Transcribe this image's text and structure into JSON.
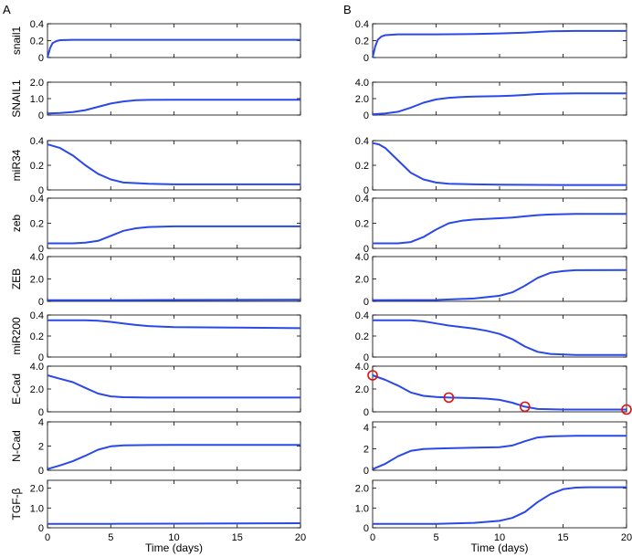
{
  "figure": {
    "x_axis_label": "Time (days)",
    "x_ticks": [
      "0",
      "5",
      "10",
      "15",
      "20"
    ],
    "line_color": "#2b48e8",
    "marker_color": "#e01010"
  },
  "chart_data": [
    {
      "panel_label": "A",
      "type": "line",
      "xlim": [
        0,
        20
      ],
      "xlabel": "Time (days)",
      "subplots": [
        {
          "ylabel": "snail1",
          "ylim": [
            0,
            0.4
          ],
          "yticks": [
            "0",
            "0.2",
            "0.4"
          ],
          "series": [
            [
              0,
              0.0
            ],
            [
              0.2,
              0.11
            ],
            [
              0.4,
              0.17
            ],
            [
              0.7,
              0.195
            ],
            [
              1,
              0.205
            ],
            [
              2,
              0.21
            ],
            [
              5,
              0.21
            ],
            [
              10,
              0.21
            ],
            [
              15,
              0.21
            ],
            [
              20,
              0.21
            ]
          ]
        },
        {
          "ylabel": "SNAIL1",
          "ylim": [
            0,
            2.0
          ],
          "yticks": [
            "0",
            "1.0",
            "2.0"
          ],
          "series": [
            [
              0,
              0.1
            ],
            [
              1,
              0.13
            ],
            [
              2,
              0.18
            ],
            [
              3,
              0.3
            ],
            [
              4,
              0.5
            ],
            [
              5,
              0.7
            ],
            [
              6,
              0.83
            ],
            [
              7,
              0.9
            ],
            [
              8,
              0.92
            ],
            [
              10,
              0.93
            ],
            [
              15,
              0.93
            ],
            [
              20,
              0.93
            ]
          ]
        },
        {
          "ylabel": "miR34",
          "ylim": [
            0,
            0.4
          ],
          "yticks": [
            "0",
            "0.2",
            "0.4"
          ],
          "series": [
            [
              0,
              0.37
            ],
            [
              1,
              0.34
            ],
            [
              2,
              0.28
            ],
            [
              3,
              0.2
            ],
            [
              4,
              0.13
            ],
            [
              5,
              0.085
            ],
            [
              6,
              0.06
            ],
            [
              8,
              0.05
            ],
            [
              10,
              0.045
            ],
            [
              15,
              0.045
            ],
            [
              20,
              0.045
            ]
          ]
        },
        {
          "ylabel": "zeb",
          "ylim": [
            0,
            0.4
          ],
          "yticks": [
            "0",
            "0.2",
            "0.4"
          ],
          "series": [
            [
              0,
              0.04
            ],
            [
              2,
              0.04
            ],
            [
              3,
              0.045
            ],
            [
              4,
              0.06
            ],
            [
              5,
              0.1
            ],
            [
              6,
              0.14
            ],
            [
              7,
              0.16
            ],
            [
              8,
              0.17
            ],
            [
              10,
              0.175
            ],
            [
              15,
              0.175
            ],
            [
              20,
              0.175
            ]
          ]
        },
        {
          "ylabel": "ZEB",
          "ylim": [
            0,
            4.0
          ],
          "yticks": [
            "0",
            "2.0",
            "4.0"
          ],
          "series": [
            [
              0,
              0.1
            ],
            [
              5,
              0.1
            ],
            [
              10,
              0.12
            ],
            [
              15,
              0.13
            ],
            [
              20,
              0.15
            ]
          ]
        },
        {
          "ylabel": "miR200",
          "ylim": [
            0,
            0.4
          ],
          "yticks": [
            "0",
            "0.2",
            "0.4"
          ],
          "series": [
            [
              0,
              0.35
            ],
            [
              3,
              0.35
            ],
            [
              4,
              0.345
            ],
            [
              5,
              0.335
            ],
            [
              6,
              0.32
            ],
            [
              7,
              0.305
            ],
            [
              8,
              0.295
            ],
            [
              10,
              0.285
            ],
            [
              15,
              0.28
            ],
            [
              20,
              0.275
            ]
          ]
        },
        {
          "ylabel": "E-Cad",
          "ylim": [
            0,
            4.0
          ],
          "yticks": [
            "0",
            "2.0",
            "4.0"
          ],
          "series": [
            [
              0,
              3.2
            ],
            [
              1,
              2.9
            ],
            [
              2,
              2.6
            ],
            [
              3,
              2.1
            ],
            [
              4,
              1.6
            ],
            [
              5,
              1.35
            ],
            [
              6,
              1.28
            ],
            [
              8,
              1.25
            ],
            [
              10,
              1.25
            ],
            [
              15,
              1.25
            ],
            [
              20,
              1.25
            ]
          ]
        },
        {
          "ylabel": "N-Cad",
          "ylim": [
            0,
            4.0
          ],
          "yticks": [
            "0",
            "2",
            "4"
          ],
          "series": [
            [
              0,
              0.1
            ],
            [
              1,
              0.4
            ],
            [
              2,
              0.75
            ],
            [
              3,
              1.2
            ],
            [
              4,
              1.7
            ],
            [
              5,
              1.98
            ],
            [
              6,
              2.05
            ],
            [
              8,
              2.08
            ],
            [
              10,
              2.1
            ],
            [
              15,
              2.1
            ],
            [
              20,
              2.1
            ]
          ]
        },
        {
          "ylabel": "TGF-β",
          "ylim": [
            0,
            2.4
          ],
          "yticks": [
            "0",
            "1.0",
            "2.0"
          ],
          "series": [
            [
              0,
              0.2
            ],
            [
              5,
              0.2
            ],
            [
              10,
              0.21
            ],
            [
              15,
              0.22
            ],
            [
              20,
              0.23
            ]
          ]
        }
      ]
    },
    {
      "panel_label": "B",
      "type": "line",
      "xlim": [
        0,
        20
      ],
      "xlabel": "Time (days)",
      "subplots": [
        {
          "ylabel": "",
          "ylim": [
            0,
            0.4
          ],
          "yticks": [
            "0",
            "0.2",
            "0.4"
          ],
          "series": [
            [
              0,
              0.0
            ],
            [
              0.2,
              0.13
            ],
            [
              0.4,
              0.21
            ],
            [
              0.7,
              0.25
            ],
            [
              1,
              0.265
            ],
            [
              2,
              0.275
            ],
            [
              5,
              0.275
            ],
            [
              8,
              0.278
            ],
            [
              10,
              0.285
            ],
            [
              12,
              0.295
            ],
            [
              14,
              0.31
            ],
            [
              16,
              0.315
            ],
            [
              20,
              0.315
            ]
          ]
        },
        {
          "ylabel": "",
          "ylim": [
            0,
            4.0
          ],
          "yticks": [
            "0",
            "2.0",
            "4.0"
          ],
          "series": [
            [
              0,
              0.1
            ],
            [
              1,
              0.2
            ],
            [
              2,
              0.4
            ],
            [
              3,
              0.9
            ],
            [
              4,
              1.5
            ],
            [
              5,
              1.9
            ],
            [
              6,
              2.1
            ],
            [
              7,
              2.2
            ],
            [
              8,
              2.25
            ],
            [
              10,
              2.3
            ],
            [
              11,
              2.35
            ],
            [
              12,
              2.45
            ],
            [
              13,
              2.55
            ],
            [
              14,
              2.6
            ],
            [
              16,
              2.65
            ],
            [
              20,
              2.65
            ]
          ]
        },
        {
          "ylabel": "",
          "ylim": [
            0,
            0.4
          ],
          "yticks": [
            "0",
            "0.2",
            "0.4"
          ],
          "series": [
            [
              0,
              0.38
            ],
            [
              0.5,
              0.37
            ],
            [
              1,
              0.34
            ],
            [
              2,
              0.24
            ],
            [
              3,
              0.14
            ],
            [
              4,
              0.085
            ],
            [
              5,
              0.06
            ],
            [
              6,
              0.05
            ],
            [
              8,
              0.045
            ],
            [
              10,
              0.042
            ],
            [
              15,
              0.04
            ],
            [
              20,
              0.04
            ]
          ]
        },
        {
          "ylabel": "",
          "ylim": [
            0,
            0.4
          ],
          "yticks": [
            "0",
            "0.2",
            "0.4"
          ],
          "series": [
            [
              0,
              0.04
            ],
            [
              2,
              0.04
            ],
            [
              3,
              0.05
            ],
            [
              4,
              0.09
            ],
            [
              5,
              0.15
            ],
            [
              6,
              0.2
            ],
            [
              7,
              0.22
            ],
            [
              8,
              0.23
            ],
            [
              10,
              0.24
            ],
            [
              11,
              0.245
            ],
            [
              12,
              0.255
            ],
            [
              13,
              0.265
            ],
            [
              14,
              0.27
            ],
            [
              16,
              0.275
            ],
            [
              20,
              0.275
            ]
          ]
        },
        {
          "ylabel": "",
          "ylim": [
            0,
            4.0
          ],
          "yticks": [
            "0",
            "2.0",
            "4.0"
          ],
          "series": [
            [
              0,
              0.1
            ],
            [
              5,
              0.12
            ],
            [
              8,
              0.25
            ],
            [
              10,
              0.5
            ],
            [
              11,
              0.8
            ],
            [
              12,
              1.4
            ],
            [
              13,
              2.1
            ],
            [
              14,
              2.55
            ],
            [
              15,
              2.7
            ],
            [
              16,
              2.78
            ],
            [
              20,
              2.8
            ]
          ]
        },
        {
          "ylabel": "",
          "ylim": [
            0,
            0.4
          ],
          "yticks": [
            "0",
            "0.2",
            "0.4"
          ],
          "series": [
            [
              0,
              0.35
            ],
            [
              3,
              0.35
            ],
            [
              4,
              0.34
            ],
            [
              5,
              0.32
            ],
            [
              6,
              0.3
            ],
            [
              8,
              0.27
            ],
            [
              9,
              0.25
            ],
            [
              10,
              0.22
            ],
            [
              11,
              0.17
            ],
            [
              12,
              0.1
            ],
            [
              13,
              0.05
            ],
            [
              14,
              0.03
            ],
            [
              16,
              0.02
            ],
            [
              20,
              0.02
            ]
          ]
        },
        {
          "ylabel": "",
          "ylim": [
            0,
            4.0
          ],
          "yticks": [
            "0",
            "2.0",
            "4.0"
          ],
          "series": [
            [
              0,
              3.2
            ],
            [
              1,
              2.8
            ],
            [
              2,
              2.3
            ],
            [
              3,
              1.7
            ],
            [
              4,
              1.4
            ],
            [
              5,
              1.3
            ],
            [
              6,
              1.25
            ],
            [
              8,
              1.2
            ],
            [
              9,
              1.15
            ],
            [
              10,
              1.05
            ],
            [
              11,
              0.8
            ],
            [
              12,
              0.45
            ],
            [
              13,
              0.25
            ],
            [
              15,
              0.2
            ],
            [
              20,
              0.2
            ]
          ],
          "markers": [
            [
              0,
              3.2
            ],
            [
              6,
              1.25
            ],
            [
              12,
              0.45
            ],
            [
              20,
              0.2
            ]
          ]
        },
        {
          "ylabel": "",
          "ylim": [
            0,
            4.5
          ],
          "yticks": [
            "0",
            "2",
            "4"
          ],
          "series": [
            [
              0,
              0.1
            ],
            [
              1,
              0.6
            ],
            [
              2,
              1.3
            ],
            [
              3,
              1.8
            ],
            [
              4,
              1.98
            ],
            [
              5,
              2.02
            ],
            [
              6,
              2.05
            ],
            [
              8,
              2.1
            ],
            [
              10,
              2.15
            ],
            [
              11,
              2.3
            ],
            [
              12,
              2.7
            ],
            [
              13,
              3.05
            ],
            [
              14,
              3.15
            ],
            [
              16,
              3.2
            ],
            [
              20,
              3.2
            ]
          ]
        },
        {
          "ylabel": "",
          "ylim": [
            0,
            2.4
          ],
          "yticks": [
            "0",
            "1.0",
            "2.0"
          ],
          "series": [
            [
              0,
              0.2
            ],
            [
              5,
              0.2
            ],
            [
              8,
              0.25
            ],
            [
              10,
              0.35
            ],
            [
              11,
              0.5
            ],
            [
              12,
              0.8
            ],
            [
              13,
              1.3
            ],
            [
              14,
              1.7
            ],
            [
              15,
              1.95
            ],
            [
              16,
              2.03
            ],
            [
              17,
              2.05
            ],
            [
              20,
              2.05
            ]
          ]
        }
      ]
    }
  ]
}
